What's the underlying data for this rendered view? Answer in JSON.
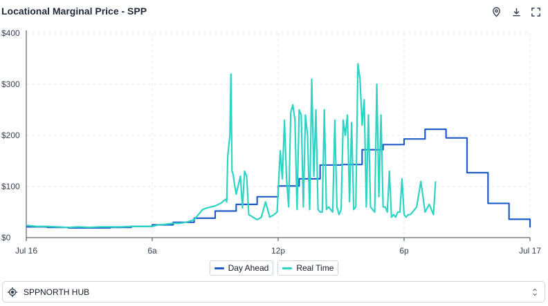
{
  "header": {
    "title": "Locational Marginal Price - SPP",
    "icons": [
      "location-pin-icon",
      "download-icon",
      "fullscreen-icon"
    ]
  },
  "legend": {
    "items": [
      {
        "label": "Day Ahead",
        "color": "#1e5bc6"
      },
      {
        "label": "Real Time",
        "color": "#2dd4c4"
      }
    ]
  },
  "selector": {
    "icon": "target-location-icon",
    "value": "SPPNORTH HUB"
  },
  "chart_data": {
    "type": "line",
    "title": "",
    "xlabel": "",
    "ylabel": "",
    "x_unit": "hour of day (Jul 16)",
    "xlim": [
      0,
      24
    ],
    "ylim": [
      0,
      400
    ],
    "x_ticks": [
      {
        "x": 0,
        "label": "Jul 16"
      },
      {
        "x": 6,
        "label": "6a"
      },
      {
        "x": 12,
        "label": "12p"
      },
      {
        "x": 18,
        "label": "6p"
      },
      {
        "x": 24,
        "label": "Jul 17"
      }
    ],
    "y_ticks": [
      {
        "y": 0,
        "label": "$0"
      },
      {
        "y": 100,
        "label": "$100"
      },
      {
        "y": 200,
        "label": "$200"
      },
      {
        "y": 300,
        "label": "$300"
      },
      {
        "y": 400,
        "label": "$400"
      }
    ],
    "grid": true,
    "legend_position": "bottom",
    "series": [
      {
        "name": "Day Ahead",
        "color": "#1e5bc6",
        "step": true,
        "x": [
          0,
          1,
          2,
          3,
          4,
          5,
          6,
          7,
          8,
          9,
          10,
          11,
          12,
          13,
          14,
          15,
          16,
          17,
          18,
          19,
          20,
          21,
          22,
          23
        ],
        "y": [
          21,
          20,
          19,
          19,
          20,
          22,
          25,
          30,
          38,
          52,
          65,
          80,
          101,
          115,
          142,
          143,
          172,
          182,
          193,
          212,
          195,
          127,
          67,
          36
        ],
        "end_x": 23,
        "end_y": 20
      },
      {
        "name": "Real Time",
        "color": "#2dd4c4",
        "x": [
          0,
          0.5,
          1,
          1.5,
          2,
          2.5,
          3,
          3.5,
          4,
          4.5,
          5,
          5.5,
          6,
          6.3,
          6.6,
          7,
          7.3,
          7.6,
          8,
          8.2,
          8.4,
          8.6,
          8.8,
          9,
          9.2,
          9.3,
          9.4,
          9.5,
          9.55,
          9.6,
          9.7,
          9.75,
          9.8,
          9.85,
          9.9,
          10,
          10.2,
          10.3,
          10.4,
          10.5,
          10.6,
          10.8,
          11,
          11.2,
          11.4,
          11.6,
          11.8,
          11.95,
          12,
          12.1,
          12.2,
          12.3,
          12.4,
          12.5,
          12.6,
          12.7,
          12.8,
          12.9,
          13,
          13.1,
          13.2,
          13.3,
          13.4,
          13.5,
          13.6,
          13.7,
          13.8,
          13.9,
          14,
          14.1,
          14.2,
          14.3,
          14.4,
          14.5,
          14.6,
          14.7,
          14.8,
          14.9,
          15,
          15.1,
          15.2,
          15.3,
          15.4,
          15.5,
          15.6,
          15.7,
          15.8,
          15.9,
          16,
          16.1,
          16.2,
          16.3,
          16.4,
          16.5,
          16.6,
          16.7,
          16.8,
          16.9,
          17,
          17.1,
          17.2,
          17.3,
          17.4,
          17.5,
          17.6,
          17.7,
          17.8,
          17.9,
          18,
          18.1,
          18.2,
          18.3,
          18.4,
          18.5,
          18.6,
          18.8,
          19,
          19.2,
          19.4,
          19.5
        ],
        "y": [
          24,
          22,
          22,
          21,
          20,
          21,
          20,
          21,
          21,
          21,
          22,
          22,
          22,
          25,
          26,
          28,
          28,
          30,
          35,
          45,
          55,
          58,
          60,
          62,
          66,
          68,
          72,
          75,
          70,
          160,
          200,
          320,
          130,
          125,
          110,
          85,
          120,
          58,
          130,
          120,
          45,
          40,
          35,
          40,
          70,
          40,
          45,
          50,
          90,
          170,
          115,
          230,
          115,
          60,
          245,
          260,
          230,
          55,
          250,
          240,
          60,
          240,
          200,
          55,
          310,
          120,
          250,
          55,
          50,
          50,
          250,
          55,
          60,
          55,
          50,
          230,
          60,
          45,
          55,
          230,
          200,
          240,
          70,
          225,
          55,
          60,
          340,
          310,
          220,
          270,
          60,
          240,
          60,
          55,
          50,
          300,
          80,
          240,
          60,
          60,
          50,
          130,
          40,
          45,
          40,
          50,
          50,
          115,
          45,
          40,
          45,
          45,
          50,
          55,
          60,
          110,
          50,
          65,
          45,
          110
        ]
      }
    ]
  }
}
